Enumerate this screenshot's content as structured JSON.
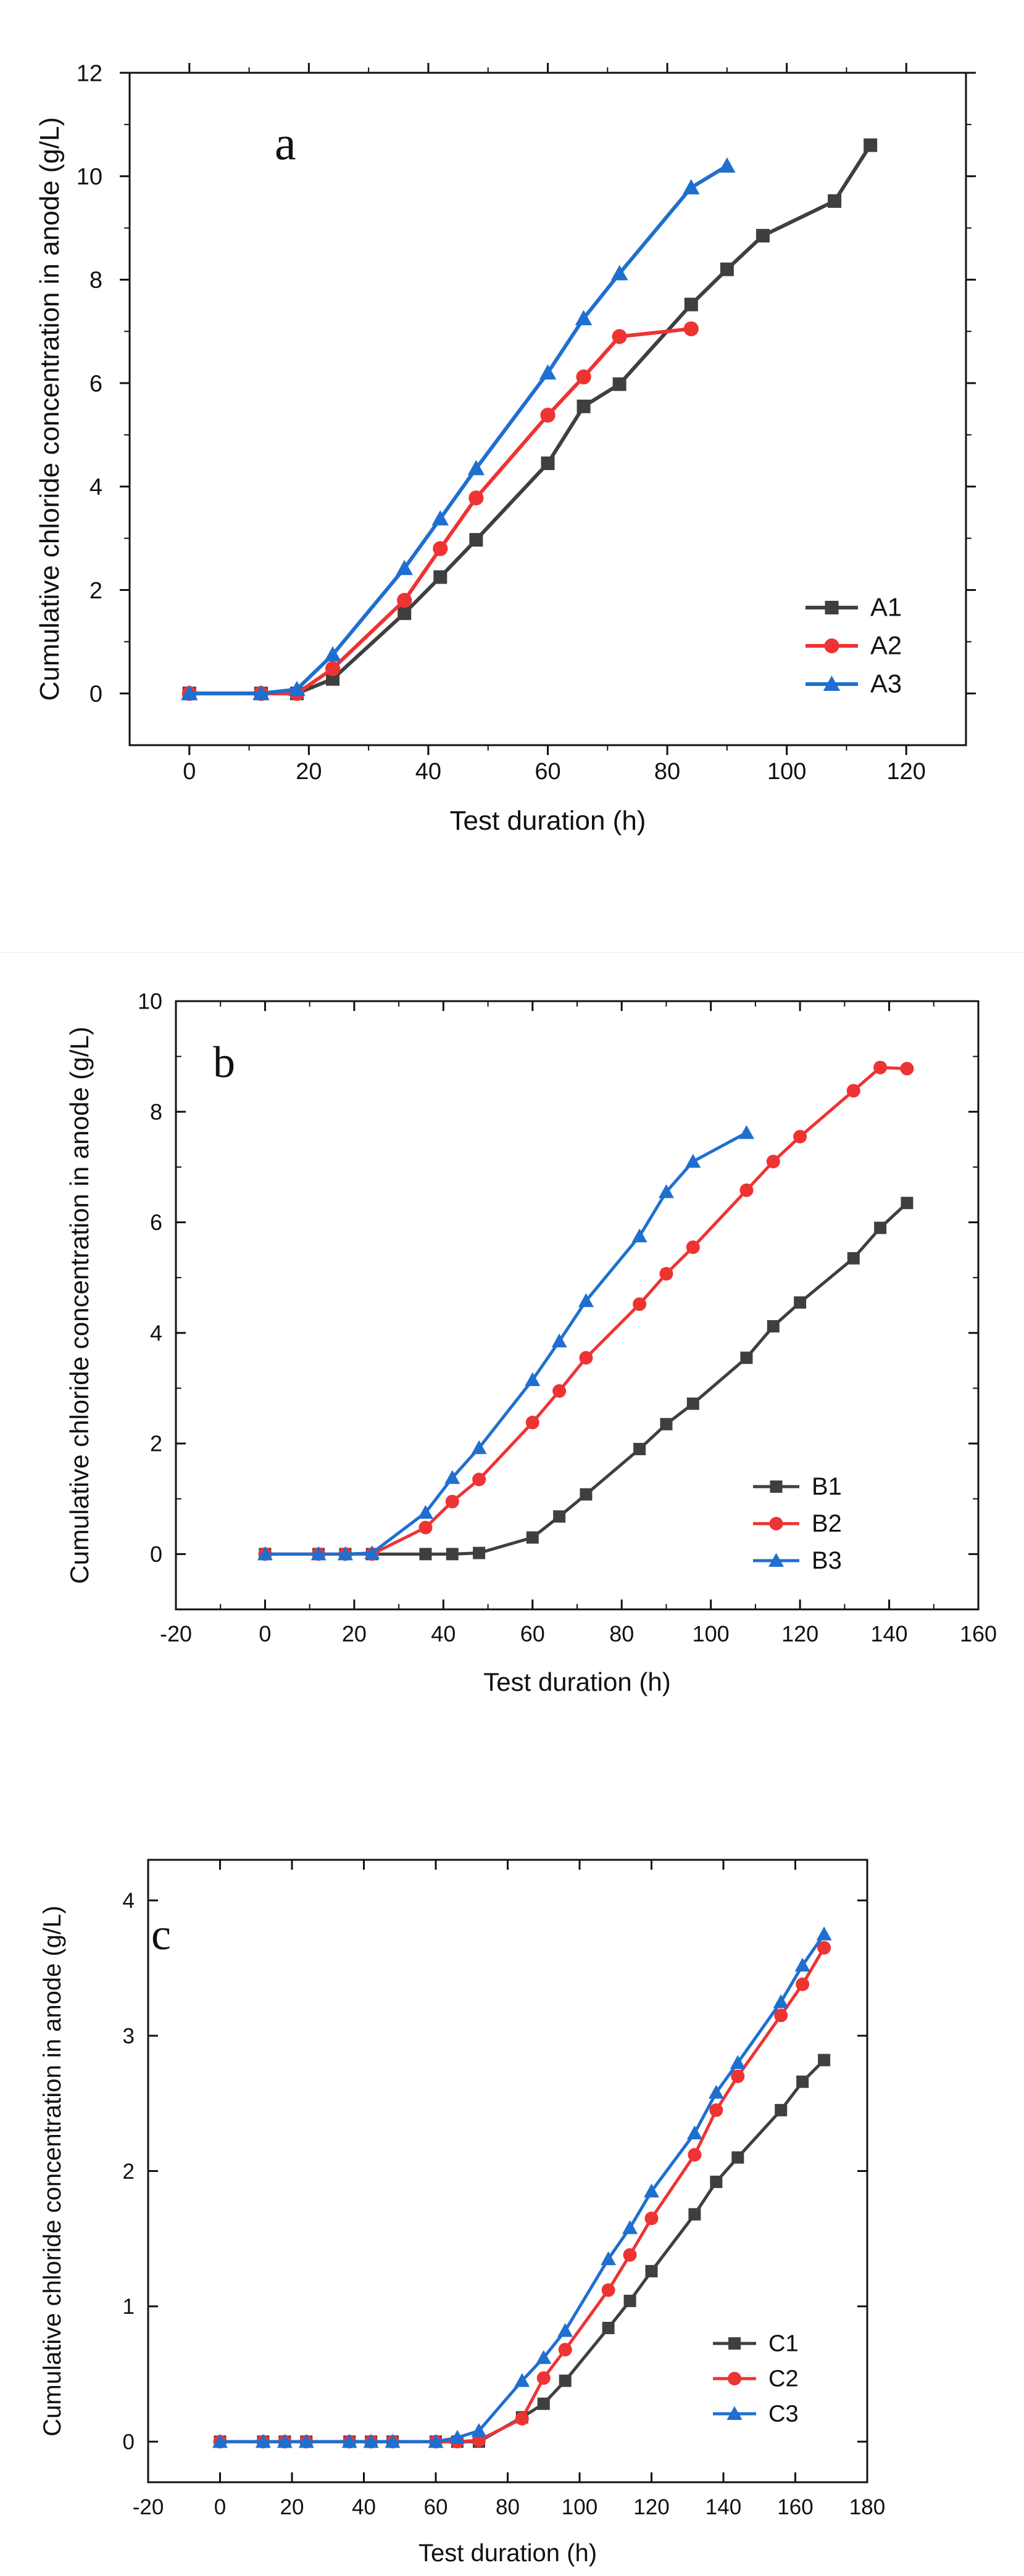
{
  "chart_data": [
    {
      "type": "line",
      "panel_label": "a",
      "xlabel": "Test duration (h)",
      "ylabel": "Cumulative chloride concentration in anode (g/L)",
      "xlim": [
        -10,
        130
      ],
      "ylim": [
        -1,
        12
      ],
      "xticks": [
        0,
        20,
        40,
        60,
        80,
        100,
        120
      ],
      "yticks": [
        0,
        2,
        4,
        6,
        8,
        10,
        12
      ],
      "legend_position": "bottom-right",
      "series": [
        {
          "name": "A1",
          "color": "#3f3f3f",
          "marker": "square",
          "x": [
            0,
            12,
            18,
            24,
            36,
            42,
            48,
            60,
            66,
            72,
            84,
            90,
            96,
            108,
            114
          ],
          "y": [
            0,
            0,
            0,
            0.28,
            1.55,
            2.25,
            2.97,
            4.45,
            5.55,
            5.98,
            7.52,
            8.2,
            8.85,
            9.52,
            10.6
          ]
        },
        {
          "name": "A2",
          "color": "#ee3333",
          "marker": "circle",
          "x": [
            0,
            12,
            18,
            24,
            36,
            42,
            48,
            60,
            66,
            72,
            84
          ],
          "y": [
            0,
            0,
            0,
            0.48,
            1.8,
            2.8,
            3.78,
            5.38,
            6.12,
            6.9,
            7.05
          ]
        },
        {
          "name": "A3",
          "color": "#1f6fd0",
          "marker": "triangle",
          "x": [
            0,
            12,
            18,
            24,
            36,
            42,
            48,
            60,
            66,
            72,
            84,
            90
          ],
          "y": [
            0,
            0,
            0.08,
            0.75,
            2.42,
            3.38,
            4.35,
            6.2,
            7.25,
            8.12,
            9.78,
            10.2
          ]
        }
      ]
    },
    {
      "type": "line",
      "panel_label": "b",
      "xlabel": "Test duration (h)",
      "ylabel": "Cumulative chloride concentration in anode (g/L)",
      "xlim": [
        -20,
        160
      ],
      "ylim": [
        -1,
        10
      ],
      "xticks": [
        -20,
        0,
        20,
        40,
        60,
        80,
        100,
        120,
        140,
        160
      ],
      "yticks": [
        0,
        2,
        4,
        6,
        8,
        10
      ],
      "legend_position": "bottom-right",
      "series": [
        {
          "name": "B1",
          "color": "#3f3f3f",
          "marker": "square",
          "x": [
            0,
            12,
            18,
            24,
            36,
            42,
            48,
            60,
            66,
            72,
            84,
            90,
            96,
            108,
            114,
            120,
            132,
            138,
            144
          ],
          "y": [
            0,
            0,
            0,
            0,
            0,
            0,
            0.02,
            0.3,
            0.68,
            1.08,
            1.9,
            2.35,
            2.72,
            3.55,
            4.12,
            4.55,
            5.35,
            5.9,
            6.35
          ]
        },
        {
          "name": "B2",
          "color": "#ee3333",
          "marker": "circle",
          "x": [
            0,
            12,
            18,
            24,
            36,
            42,
            48,
            60,
            66,
            72,
            84,
            90,
            96,
            108,
            114,
            120,
            132,
            138,
            144
          ],
          "y": [
            0,
            0,
            0,
            0,
            0.48,
            0.95,
            1.35,
            2.38,
            2.95,
            3.55,
            4.52,
            5.07,
            5.55,
            6.58,
            7.1,
            7.55,
            8.38,
            8.8,
            8.78
          ]
        },
        {
          "name": "B3",
          "color": "#1f6fd0",
          "marker": "triangle",
          "x": [
            0,
            12,
            18,
            24,
            36,
            42,
            48,
            60,
            66,
            72,
            84,
            90,
            96,
            108
          ],
          "y": [
            0,
            0,
            0,
            0.02,
            0.75,
            1.38,
            1.92,
            3.15,
            3.85,
            4.58,
            5.75,
            6.55,
            7.1,
            7.62
          ]
        }
      ]
    },
    {
      "type": "line",
      "panel_label": "c",
      "xlabel": "Test duration (h)",
      "ylabel": "Cumulative chloride concentration in anode (g/L)",
      "xlim": [
        -20,
        180
      ],
      "ylim": [
        -0.3,
        4.3
      ],
      "xticks": [
        -20,
        0,
        20,
        40,
        60,
        80,
        100,
        120,
        140,
        160,
        180
      ],
      "yticks": [
        0,
        1,
        2,
        3,
        4
      ],
      "legend_position": "bottom-right",
      "series": [
        {
          "name": "C1",
          "color": "#3f3f3f",
          "marker": "square",
          "x": [
            0,
            12,
            18,
            24,
            36,
            42,
            48,
            60,
            66,
            72,
            84,
            90,
            96,
            108,
            114,
            120,
            132,
            138,
            144,
            156,
            162,
            168
          ],
          "y": [
            0,
            0,
            0,
            0,
            0,
            0,
            0,
            0,
            0,
            0,
            0.18,
            0.28,
            0.45,
            0.84,
            1.04,
            1.26,
            1.68,
            1.92,
            2.1,
            2.45,
            2.66,
            2.82
          ]
        },
        {
          "name": "C2",
          "color": "#ee3333",
          "marker": "circle",
          "x": [
            0,
            12,
            18,
            24,
            36,
            42,
            48,
            60,
            66,
            72,
            84,
            90,
            96,
            108,
            114,
            120,
            132,
            138,
            144,
            156,
            162,
            168
          ],
          "y": [
            0,
            0,
            0,
            0,
            0,
            0,
            0,
            0,
            0,
            0.01,
            0.17,
            0.47,
            0.68,
            1.12,
            1.38,
            1.65,
            2.12,
            2.45,
            2.7,
            3.15,
            3.38,
            3.65
          ]
        },
        {
          "name": "C3",
          "color": "#1f6fd0",
          "marker": "triangle",
          "x": [
            0,
            12,
            18,
            24,
            36,
            42,
            48,
            60,
            66,
            72,
            84,
            90,
            96,
            108,
            114,
            120,
            132,
            138,
            144,
            156,
            162,
            168
          ],
          "y": [
            0,
            0,
            0,
            0,
            0,
            0,
            0,
            0,
            0.03,
            0.08,
            0.45,
            0.62,
            0.82,
            1.35,
            1.58,
            1.85,
            2.28,
            2.58,
            2.8,
            3.25,
            3.52,
            3.75
          ]
        }
      ]
    }
  ]
}
